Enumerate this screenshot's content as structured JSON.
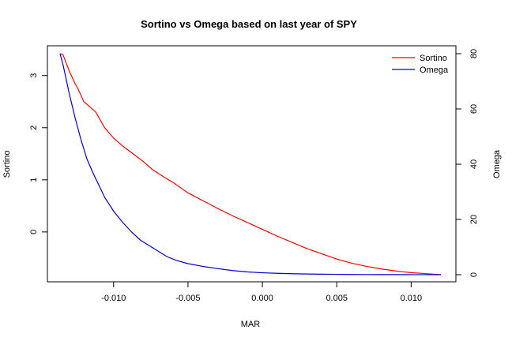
{
  "chart_data": {
    "type": "line",
    "title": "Sortino vs Omega  based on last year of SPY",
    "xlabel": "MAR",
    "ylabel_left": "Sortino",
    "ylabel_right": "Omega",
    "xlim": [
      -0.0136,
      0.012
    ],
    "ylim_left": [
      -0.82,
      3.42
    ],
    "ylim_right": [
      0,
      80
    ],
    "x_ticks": [
      -0.01,
      -0.005,
      0.0,
      0.005,
      0.01
    ],
    "x_tick_labels": [
      "-0.010",
      "-0.005",
      "0.000",
      "0.005",
      "0.010"
    ],
    "y_left_ticks": [
      0,
      1,
      2,
      3
    ],
    "y_left_tick_labels": [
      "0",
      "1",
      "2",
      "3"
    ],
    "y_right_ticks": [
      0,
      20,
      40,
      60,
      80
    ],
    "y_right_tick_labels": [
      "0",
      "20",
      "40",
      "60",
      "80"
    ],
    "grid": false,
    "legend_position": "top-right",
    "series": [
      {
        "name": "Sortino",
        "axis": "left",
        "color": "#ff0000",
        "x": [
          -0.0136,
          -0.0134,
          -0.013,
          -0.0126,
          -0.0124,
          -0.012,
          -0.0116,
          -0.0112,
          -0.011,
          -0.0106,
          -0.01,
          -0.0094,
          -0.0086,
          -0.008,
          -0.0074,
          -0.0066,
          -0.006,
          -0.005,
          -0.004,
          -0.003,
          -0.002,
          -0.001,
          0.0,
          0.001,
          0.002,
          0.003,
          0.004,
          0.005,
          0.006,
          0.007,
          0.008,
          0.009,
          0.01,
          0.011,
          0.012
        ],
        "values": [
          3.42,
          3.4,
          3.1,
          2.85,
          2.75,
          2.5,
          2.4,
          2.3,
          2.2,
          2.0,
          1.8,
          1.65,
          1.48,
          1.35,
          1.2,
          1.05,
          0.95,
          0.75,
          0.6,
          0.45,
          0.31,
          0.18,
          0.05,
          -0.08,
          -0.2,
          -0.32,
          -0.42,
          -0.52,
          -0.6,
          -0.66,
          -0.71,
          -0.75,
          -0.78,
          -0.8,
          -0.82
        ]
      },
      {
        "name": "Omega",
        "axis": "right",
        "color": "#0000cd",
        "x": [
          -0.0136,
          -0.0134,
          -0.013,
          -0.0126,
          -0.0122,
          -0.0118,
          -0.0114,
          -0.011,
          -0.0106,
          -0.01,
          -0.0094,
          -0.0088,
          -0.0082,
          -0.0076,
          -0.007,
          -0.0064,
          -0.0058,
          -0.005,
          -0.004,
          -0.003,
          -0.002,
          -0.001,
          0.0,
          0.001,
          0.002,
          0.003,
          0.004,
          0.005,
          0.006,
          0.007,
          0.008,
          0.009,
          0.01,
          0.011,
          0.012
        ],
        "values": [
          80.0,
          76.0,
          66.0,
          57.0,
          49.0,
          42.0,
          37.0,
          32.5,
          28.0,
          23.0,
          19.0,
          15.5,
          12.5,
          10.5,
          8.5,
          6.5,
          5.2,
          4.0,
          3.0,
          2.2,
          1.5,
          1.0,
          0.7,
          0.5,
          0.35,
          0.25,
          0.18,
          0.12,
          0.08,
          0.05,
          0.04,
          0.03,
          0.02,
          0.01,
          0.0
        ]
      }
    ]
  }
}
